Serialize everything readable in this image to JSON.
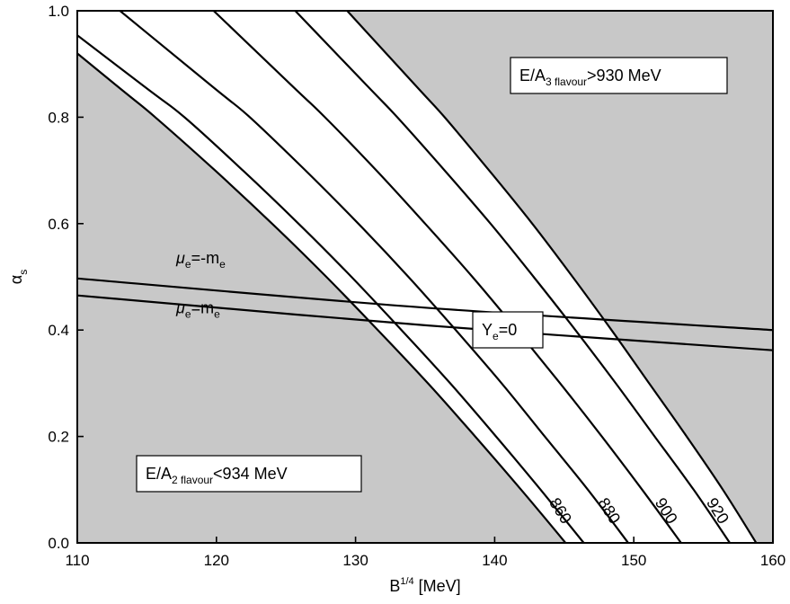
{
  "chart_data": {
    "type": "line",
    "xlabel": "B",
    "xlabel_sup": "1/4",
    "xlabel_unit": " [MeV]",
    "ylabel": "α",
    "ylabel_sub": "s",
    "xlim": [
      110,
      160
    ],
    "ylim": [
      0.0,
      1.0
    ],
    "x_ticks": [
      110,
      120,
      130,
      140,
      150,
      160
    ],
    "x_tick_labels": [
      "110",
      "120",
      "130",
      "140",
      "150",
      "160"
    ],
    "y_ticks": [
      0.0,
      0.2,
      0.4,
      0.6,
      0.8,
      1.0
    ],
    "y_tick_labels": [
      "0.0",
      "0.2",
      "0.4",
      "0.6",
      "0.8",
      "1.0"
    ],
    "grid": false,
    "colors": {
      "excluded_region": "#c8c8c8",
      "allowed_region": "#ffffff",
      "line": "#000000"
    },
    "region_annotations": [
      {
        "id": "three-flavour",
        "prefix": "E/A",
        "sub": "3 flavour",
        "suffix": ">930 MeV"
      },
      {
        "id": "two-flavour",
        "prefix": "E/A",
        "sub": "2 flavour",
        "suffix": "<934 MeV"
      },
      {
        "id": "ye-zero",
        "prefix": "Y",
        "sub": "e",
        "suffix": "=0"
      }
    ],
    "series": [
      {
        "label": "",
        "role": "lower-bound",
        "x": [
          145.1,
          141.9,
          138.6,
          135.2,
          131.6,
          127.9,
          124.0,
          119.9,
          115.6,
          112.8
        ],
        "y": [
          0.0,
          0.1,
          0.2,
          0.3,
          0.4,
          0.5,
          0.6,
          0.7,
          0.8,
          0.86
        ]
      },
      {
        "label": "860",
        "role": "contour",
        "x": [
          146.4,
          143.3,
          140.1,
          136.8,
          133.3,
          129.7,
          125.9,
          121.9,
          117.7,
          114.7
        ],
        "y": [
          0.0,
          0.1,
          0.2,
          0.3,
          0.4,
          0.5,
          0.6,
          0.7,
          0.8,
          0.86
        ]
      },
      {
        "label": "880",
        "role": "contour",
        "x": [
          149.6,
          146.7,
          143.6,
          140.5,
          137.2,
          133.8,
          130.2,
          126.4,
          122.4,
          119.6
        ],
        "y": [
          0.0,
          0.1,
          0.2,
          0.3,
          0.4,
          0.5,
          0.6,
          0.7,
          0.8,
          0.86
        ]
      },
      {
        "label": "900",
        "role": "contour",
        "x": [
          153.4,
          150.6,
          147.7,
          144.7,
          141.6,
          138.4,
          135.0,
          131.5,
          127.8,
          125.4
        ],
        "y": [
          0.0,
          0.1,
          0.2,
          0.3,
          0.4,
          0.5,
          0.6,
          0.7,
          0.8,
          0.86
        ]
      },
      {
        "label": "920",
        "role": "contour",
        "x": [
          156.9,
          154.3,
          151.5,
          148.7,
          145.8,
          142.8,
          139.7,
          136.4,
          133.0,
          130.8
        ],
        "y": [
          0.0,
          0.1,
          0.2,
          0.3,
          0.4,
          0.5,
          0.6,
          0.7,
          0.8,
          0.86
        ]
      },
      {
        "label": "",
        "role": "upper-bound",
        "x": [
          158.8,
          156.4,
          153.8,
          151.1,
          148.4,
          145.6,
          142.7,
          139.6,
          136.4,
          134.3
        ],
        "y": [
          0.0,
          0.1,
          0.2,
          0.3,
          0.4,
          0.5,
          0.6,
          0.7,
          0.8,
          0.86
        ]
      },
      {
        "label_prefix": "μ",
        "label_sub": "e",
        "label_mid": "=-m",
        "label_sub2": "e",
        "role": "chemical-potential",
        "x": [
          110,
          135,
          160
        ],
        "y": [
          0.497,
          0.442,
          0.4
        ]
      },
      {
        "label_prefix": "μ",
        "label_sub": "e",
        "label_mid": "=m",
        "label_sub2": "e",
        "role": "chemical-potential",
        "x": [
          110,
          135,
          160
        ],
        "y": [
          0.465,
          0.409,
          0.362
        ]
      }
    ]
  }
}
